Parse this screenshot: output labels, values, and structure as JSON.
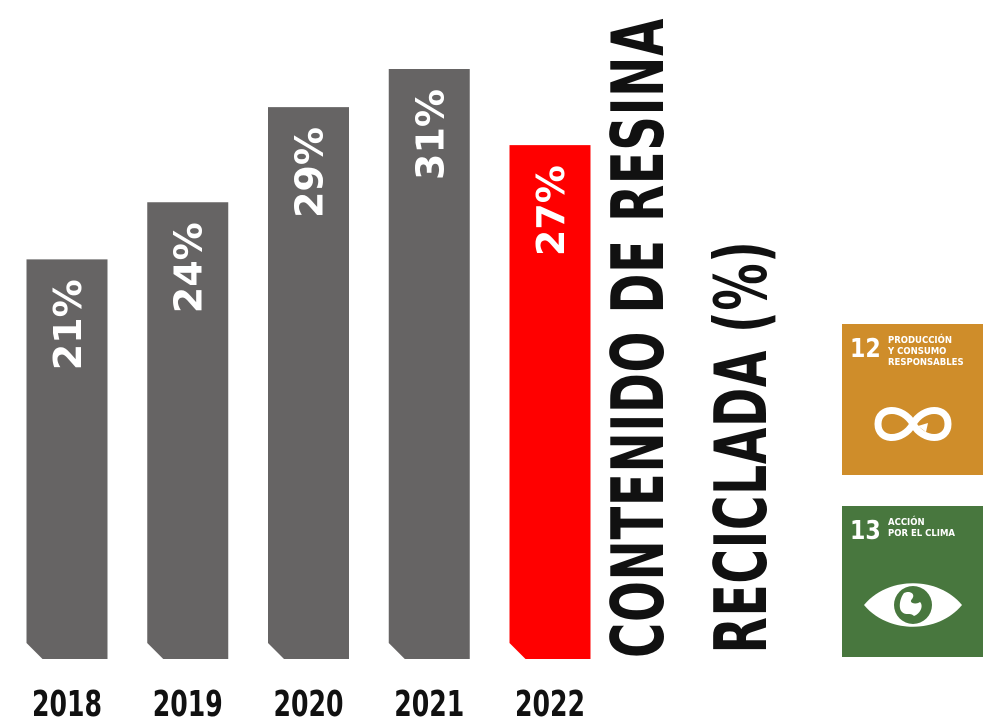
{
  "chart_data": {
    "type": "bar",
    "title": [
      "CONTENIDO DE RESINA",
      "RECICLADA (%)"
    ],
    "categories": [
      "2018",
      "2019",
      "2020",
      "2021",
      "2022"
    ],
    "values": [
      21,
      24,
      29,
      31,
      27
    ],
    "data_labels": [
      "21%",
      "24%",
      "29%",
      "31%",
      "27%"
    ],
    "highlight_index": 4,
    "ylim": [
      0,
      31
    ],
    "colors": {
      "default": "#666464",
      "highlight": "#ff0000",
      "label": "#ffffff",
      "text": "#111111"
    }
  },
  "sdg_badges": [
    {
      "number": "12",
      "lines": [
        "PRODUCCIÓN",
        "Y CONSUMO",
        "RESPONSABLES"
      ],
      "icon": "infinity-loop-icon",
      "color": "#cf8d2a"
    },
    {
      "number": "13",
      "lines": [
        "ACCIÓN",
        "POR EL CLIMA"
      ],
      "icon": "eye-globe-icon",
      "color": "#48773e"
    }
  ]
}
